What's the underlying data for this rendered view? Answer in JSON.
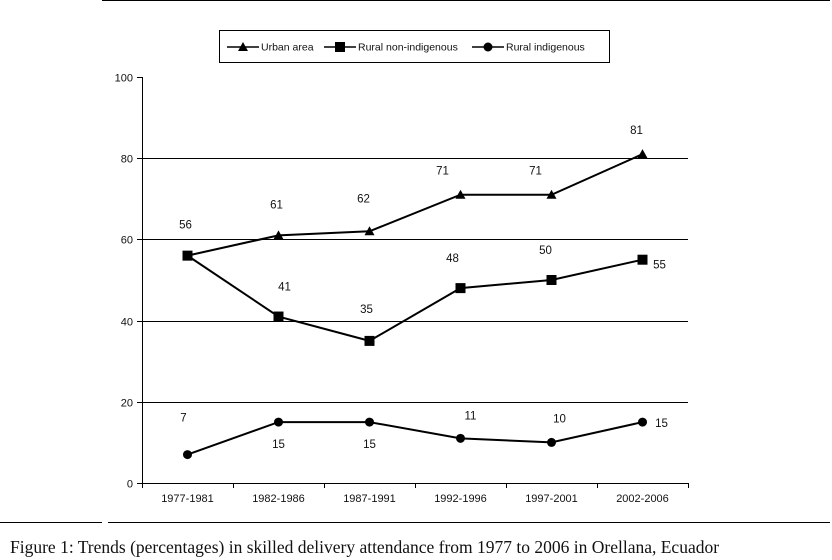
{
  "figure_caption": "Figure 1: Trends (percentages) in skilled delivery attendance from 1977 to 2006 in Orellana, Ecuador",
  "chart_data": {
    "type": "line",
    "title": "",
    "xlabel": "",
    "ylabel": "",
    "categories": [
      "1977-1981",
      "1982-1986",
      "1987-1991",
      "1992-1996",
      "1997-2001",
      "2002-2006"
    ],
    "ylim": [
      0,
      100
    ],
    "yticks": [
      0,
      20,
      40,
      60,
      80,
      100
    ],
    "grid": "horizontal major gridlines at 20, 40, 60, 80",
    "legend_position": "top",
    "series": [
      {
        "name": "Urban area",
        "marker": "triangle",
        "values": [
          56,
          61,
          62,
          71,
          71,
          81
        ]
      },
      {
        "name": "Rural non-indigenous",
        "marker": "square",
        "values": [
          56,
          41,
          35,
          48,
          50,
          55
        ]
      },
      {
        "name": "Rural indigenous",
        "marker": "circle",
        "values": [
          7,
          15,
          15,
          11,
          10,
          15
        ]
      }
    ],
    "data_labels": [
      [
        "56",
        "61",
        "62",
        "71",
        "71",
        "81"
      ],
      [
        "",
        "41",
        "35",
        "48",
        "50",
        "55"
      ],
      [
        "7",
        "15",
        "15",
        "11",
        "10",
        "15"
      ]
    ],
    "colors": {
      "line": "#000000",
      "grid": "#000000"
    }
  }
}
